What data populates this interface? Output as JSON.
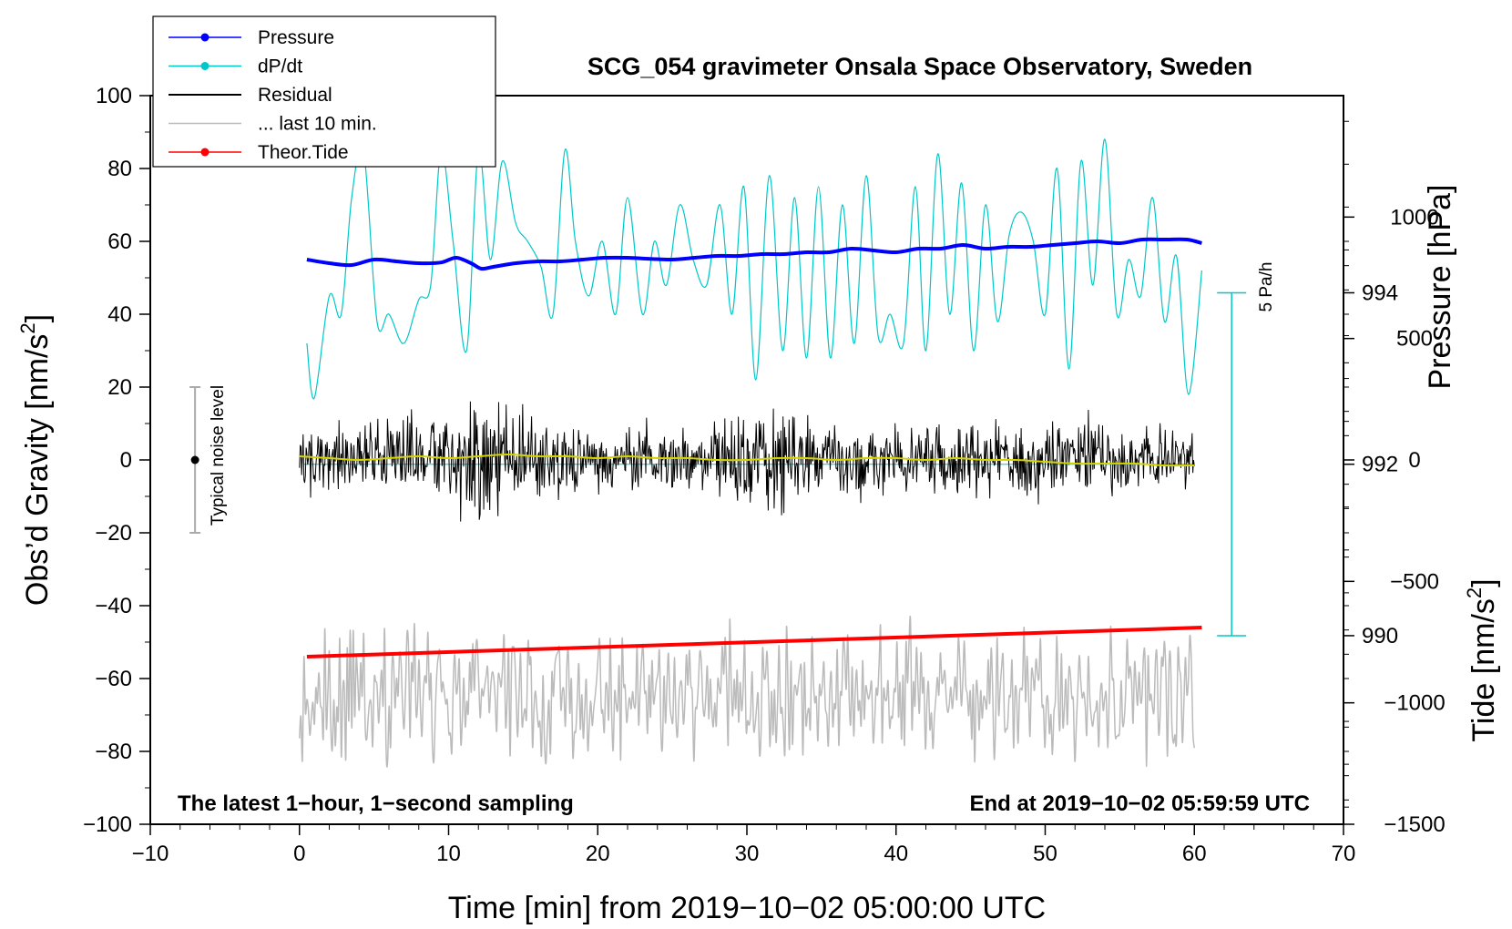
{
  "chart_data": {
    "type": "line",
    "title": "SCG_054 gravimeter Onsala Space Observatory, Sweden",
    "xlabel": "Time [min] from 2019−10−02 05:00:00 UTC",
    "ylabel_left": "Obs’d Gravity [nm/s",
    "ylabel_left_sup": "2",
    "ylabel_left_close": "]",
    "ylabel_right_pressure": "Pressure [hPa]",
    "ylabel_right_tide": "Tide [nm/s",
    "ylabel_right_tide_sup": "2",
    "ylabel_right_tide_close": "]",
    "note_left": "The latest 1−hour, 1−second sampling",
    "note_right": "End at 2019−10−02 05:59:59 UTC",
    "noise_label": "Typical noise level",
    "rate_scale_label": "5 Pa/h",
    "xlim": [
      -10,
      70
    ],
    "ylim_gravity": [
      -100,
      100
    ],
    "ylim_pressure": [
      987.8,
      996.3
    ],
    "ylim_tide": [
      -1500,
      1500
    ],
    "x_ticks": [
      -10,
      0,
      10,
      20,
      30,
      40,
      50,
      60,
      70
    ],
    "x_tick_labels": [
      "−10",
      "0",
      "10",
      "20",
      "30",
      "40",
      "50",
      "60",
      "70"
    ],
    "y_ticks_gravity": [
      100,
      80,
      60,
      40,
      20,
      0,
      -20,
      -40,
      -60,
      -80,
      -100
    ],
    "y_tick_labels_gravity": [
      "100",
      "80",
      "60",
      "40",
      "20",
      "0",
      "−20",
      "−40",
      "−60",
      "−80",
      "−100"
    ],
    "y_ticks_pressure": [
      994,
      992,
      990
    ],
    "y_tick_labels_pressure": [
      "994",
      "992",
      "990"
    ],
    "y_ticks_tide": [
      1000,
      500,
      0,
      -500,
      -1000,
      -1500
    ],
    "y_tick_labels_tide": [
      "1000",
      "500",
      "0",
      "−500",
      "−1000",
      "−1500"
    ],
    "legend": [
      {
        "label": "Pressure",
        "color": "#0000ff",
        "marker": true
      },
      {
        "label": "dP/dt",
        "color": "#00c8c8",
        "marker": true
      },
      {
        "label": "Residual",
        "color": "#000000",
        "marker": false
      },
      {
        "label": "... last 10 min.",
        "color": "#bbbbbb",
        "marker": false
      },
      {
        "label": "Theor.Tide",
        "color": "#ff0000",
        "marker": true
      }
    ],
    "noise_range": [
      -20,
      20
    ],
    "noise_x": -7,
    "rate_bar_pressure_range": [
      990,
      994
    ],
    "rate_bar_x": 62.5,
    "dpdt_baseline_pressure": 992,
    "series": {
      "pressure": {
        "name": "Pressure",
        "color": "#0000ff",
        "x": [
          0.5,
          2,
          3.5,
          5,
          6.5,
          8,
          9.5,
          10.5,
          11.5,
          12.2,
          13,
          14.5,
          16,
          17.5,
          19,
          20.5,
          22,
          23.5,
          25,
          26.5,
          28,
          29.5,
          31,
          32.5,
          34,
          35.5,
          37,
          38.5,
          40,
          41.5,
          43,
          44.5,
          46,
          47.5,
          49,
          50.5,
          52,
          53.5,
          55,
          56.5,
          58,
          59.5,
          60.5
        ],
        "y": [
          55,
          54,
          53.5,
          55,
          54.5,
          54,
          54.2,
          55.5,
          54,
          52.5,
          53,
          54,
          54.5,
          54.5,
          55,
          55.5,
          55.5,
          55.2,
          55,
          55.5,
          56,
          56,
          56.5,
          56.5,
          57,
          57,
          58,
          57.5,
          57,
          58,
          58,
          59,
          58,
          58.5,
          58.5,
          59,
          59.5,
          60,
          59.5,
          60.5,
          60.5,
          60.5,
          59.5
        ]
      },
      "dpdt": {
        "name": "dP/dt",
        "color": "#00c8c8",
        "x": [
          0.5,
          1,
          2,
          2.8,
          3.5,
          4.3,
          5.2,
          6,
          7,
          8,
          8.8,
          9.5,
          10.3,
          11.2,
          12,
          12.8,
          13.6,
          14.5,
          15.3,
          16.2,
          17,
          17.8,
          18.5,
          19.4,
          20.3,
          21.2,
          22,
          23,
          23.8,
          24.6,
          25.5,
          26.4,
          27.3,
          28.2,
          29,
          29.8,
          30.6,
          31.5,
          32.4,
          33.2,
          34,
          34.8,
          35.6,
          36.4,
          37.2,
          38,
          38.8,
          39.6,
          40.5,
          41.3,
          42,
          42.8,
          43.6,
          44.4,
          45.2,
          46,
          46.8,
          47.6,
          48.4,
          49.2,
          50,
          50.8,
          51.6,
          52.4,
          53.2,
          54,
          54.8,
          55.6,
          56.4,
          57.2,
          58,
          58.8,
          59.6,
          60.5
        ],
        "y": [
          32,
          17,
          45,
          40,
          72,
          85,
          38,
          40,
          32,
          44,
          48,
          85,
          60,
          30,
          85,
          55,
          82,
          65,
          60,
          53,
          40,
          85,
          60,
          45,
          60,
          40,
          72,
          40,
          60,
          48,
          70,
          55,
          48,
          70,
          40,
          75,
          22,
          78,
          30,
          72,
          28,
          75,
          28,
          70,
          32,
          78,
          34,
          40,
          32,
          75,
          30,
          84,
          40,
          76,
          30,
          70,
          38,
          62,
          68,
          60,
          40,
          80,
          25,
          82,
          48,
          88,
          40,
          55,
          45,
          72,
          38,
          56,
          18,
          52
        ]
      },
      "residual": {
        "name": "Residual",
        "color": "#000000",
        "generator": "seeded-noise",
        "x_range": [
          0,
          60
        ],
        "samples": 1200,
        "seed": 54,
        "amplitude_envelope_x": [
          0,
          5,
          10,
          12,
          14,
          20,
          25,
          30,
          32,
          35,
          40,
          45,
          50,
          55,
          60
        ],
        "amplitude_envelope_y": [
          10,
          12,
          14,
          22,
          16,
          12,
          11,
          14,
          18,
          12,
          11,
          13,
          12,
          11,
          10
        ]
      },
      "residual_smooth": {
        "name": "Residual (smoothed)",
        "color": "#d4d400",
        "x": [
          0,
          2,
          4,
          6,
          8,
          10,
          12,
          14,
          16,
          18,
          20,
          22,
          24,
          26,
          28,
          30,
          32,
          34,
          36,
          38,
          40,
          42,
          44,
          46,
          48,
          50,
          52,
          54,
          56,
          58,
          60
        ],
        "y": [
          1,
          0.5,
          0,
          0.5,
          1,
          0.5,
          1,
          1.5,
          1,
          1,
          0.5,
          1,
          0.5,
          0.5,
          0,
          0,
          0.5,
          0.5,
          0,
          0.5,
          0.5,
          0,
          0.5,
          0,
          0,
          -0.5,
          -1,
          -1,
          -1,
          -1.5,
          -1.5
        ]
      },
      "last_10_min": {
        "name": "... last 10 min.",
        "color": "#bbbbbb",
        "generator": "seeded-noise",
        "x_range": [
          0,
          60
        ],
        "samples": 600,
        "seed": 10,
        "center": -64,
        "amplitude": 12
      },
      "tide": {
        "name": "Theor.Tide",
        "color": "#ff0000",
        "x": [
          0.5,
          60.5
        ],
        "y": [
          -54,
          -46
        ]
      }
    }
  }
}
